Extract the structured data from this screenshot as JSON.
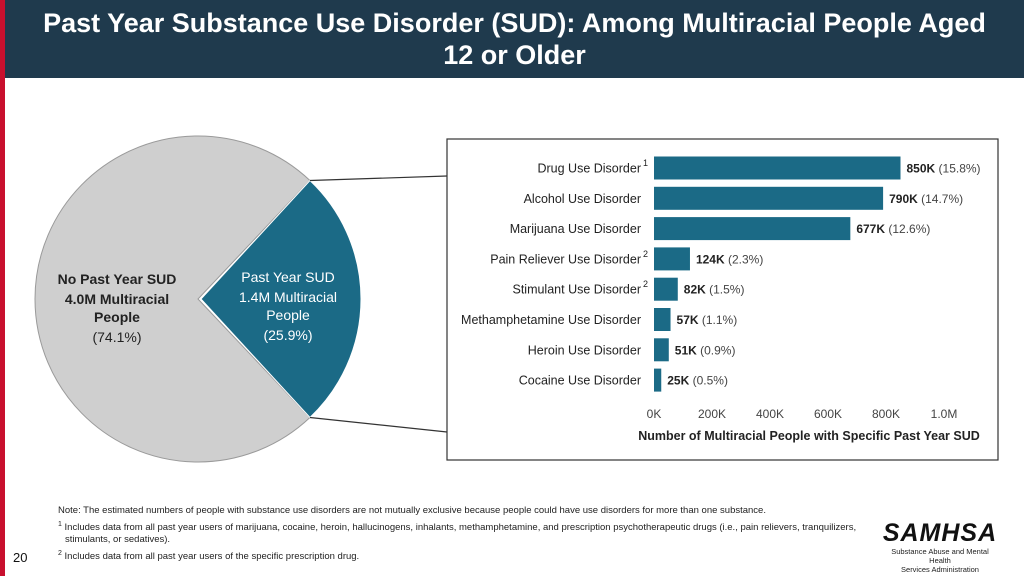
{
  "title": "Past Year Substance Use Disorder (SUD): Among Multiracial People Aged 12 or Older",
  "colors": {
    "header": "#1f3a4d",
    "accent_red": "#c8102e",
    "teal": "#1b6a86",
    "gray_slice": "#cfcfcf"
  },
  "chart_data": [
    {
      "type": "pie",
      "slices": [
        {
          "label": "No Past Year SUD",
          "subtitle": "4.0M Multiracial People",
          "pct_label": "(74.1%)",
          "value": 74.1,
          "color": "#cfcfcf"
        },
        {
          "label": "Past Year SUD",
          "subtitle": "1.4M Multiracial People",
          "pct_label": "(25.9%)",
          "value": 25.9,
          "color": "#1b6a86"
        }
      ]
    },
    {
      "type": "bar",
      "orientation": "horizontal",
      "categories": [
        {
          "label": "Drug Use Disorder",
          "sup": "1"
        },
        {
          "label": "Alcohol Use Disorder",
          "sup": ""
        },
        {
          "label": "Marijuana Use Disorder",
          "sup": ""
        },
        {
          "label": "Pain Reliever Use Disorder",
          "sup": "2"
        },
        {
          "label": "Stimulant Use Disorder",
          "sup": "2"
        },
        {
          "label": "Methamphetamine Use Disorder",
          "sup": ""
        },
        {
          "label": "Heroin Use Disorder",
          "sup": ""
        },
        {
          "label": "Cocaine Use Disorder",
          "sup": ""
        }
      ],
      "values": [
        850,
        790,
        677,
        124,
        82,
        57,
        51,
        25
      ],
      "value_labels": [
        "850K",
        "790K",
        "677K",
        "124K",
        "82K",
        "57K",
        "51K",
        "25K"
      ],
      "pct_labels": [
        "(15.8%)",
        "(14.7%)",
        "(12.6%)",
        "(2.3%)",
        "(1.5%)",
        "(1.1%)",
        "(0.9%)",
        "(0.5%)"
      ],
      "xlim": [
        0,
        1000
      ],
      "xticks": [
        0,
        200,
        400,
        600,
        800,
        1000
      ],
      "xtick_labels": [
        "0K",
        "200K",
        "400K",
        "600K",
        "800K",
        "1.0M"
      ],
      "xlabel": "Number of Multiracial People with Specific Past Year SUD",
      "color": "#1b6a86"
    }
  ],
  "notes": {
    "note": "Note: The estimated numbers of people with substance use disorders are not mutually exclusive because people could have use disorders for more than one substance.",
    "fn1_mark": "1",
    "fn1": "Includes data from all past year users of marijuana, cocaine, heroin, hallucinogens, inhalants, methamphetamine, and prescription psychotherapeutic drugs (i.e., pain relievers, tranquilizers, stimulants, or sedatives).",
    "fn2_mark": "2",
    "fn2": "Includes data from all past year users of the specific prescription drug."
  },
  "page_number": "20",
  "logo": {
    "word": "SAMHSA",
    "line1": "Substance Abuse and Mental Health",
    "line2": "Services Administration"
  }
}
